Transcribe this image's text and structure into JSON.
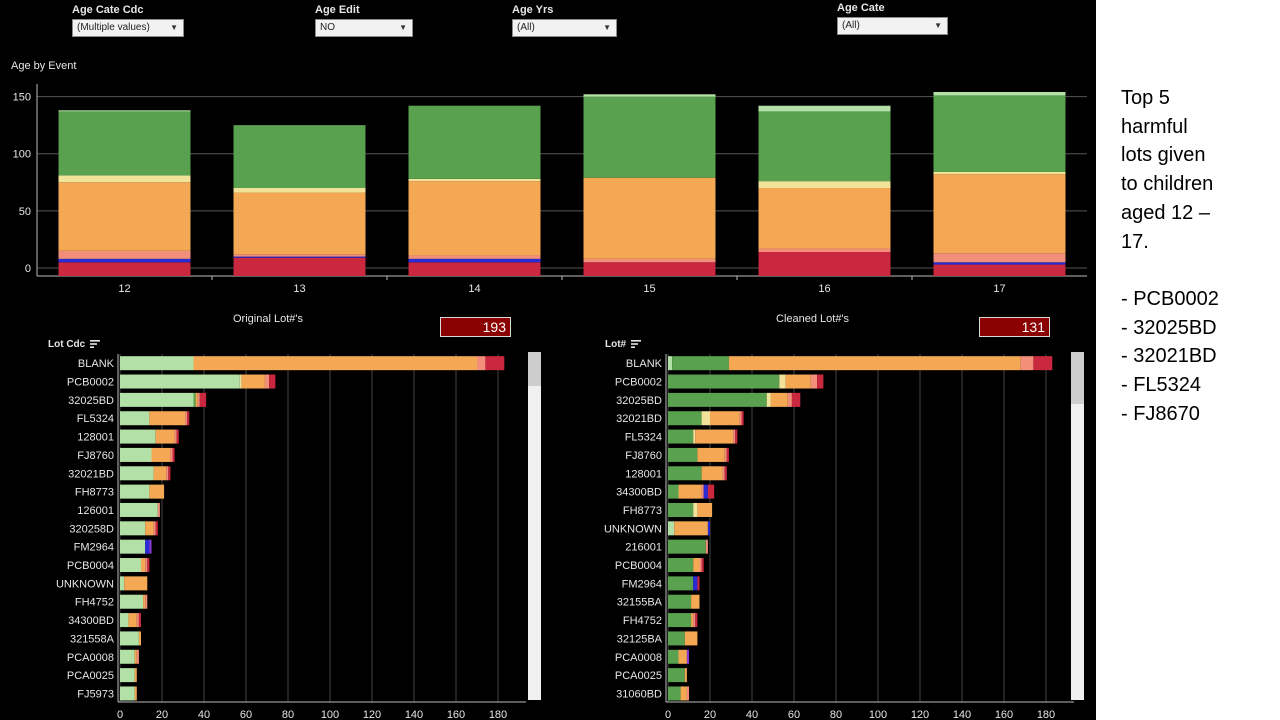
{
  "filters": [
    {
      "label": "Age Cate Cdc",
      "value": "(Multiple values)"
    },
    {
      "label": "Age Edit",
      "value": "NO"
    },
    {
      "label": "Age Yrs",
      "value": "(All)"
    },
    {
      "label": "Age Cate",
      "value": "(All)"
    }
  ],
  "top_chart": {
    "title": "Age by Event",
    "y_ticks": [
      "150",
      "100",
      "50",
      "0"
    ]
  },
  "left_panel": {
    "title": "Original Lot#'s",
    "count": "193",
    "column_header": "Lot Cdc",
    "x_ticks": [
      "0",
      "20",
      "40",
      "60",
      "80",
      "100",
      "120",
      "140",
      "160",
      "180"
    ]
  },
  "right_panel": {
    "title": "Cleaned Lot#'s",
    "count": "131",
    "column_header": "Lot#",
    "x_ticks": [
      "0",
      "20",
      "40",
      "60",
      "80",
      "100",
      "120",
      "140",
      "160",
      "180"
    ]
  },
  "notes": {
    "heading_lines": [
      "Top 5",
      "harmful",
      "lots given",
      "to children",
      "aged 12 –",
      "17."
    ],
    "items": [
      "- PCB0002",
      "- 32025BD",
      "- 32021BD",
      "- FL5324",
      "- FJ8670"
    ]
  },
  "colors": {
    "dark_green": "#59a14f",
    "light_green": "#b3e0a6",
    "pale_yellow": "#f1e49a",
    "orange": "#f5a853",
    "salmon": "#f28e7a",
    "red": "#c9283f",
    "blue": "#2b2bd6",
    "purple": "#8a3bd6",
    "count_box": "#8b0000"
  },
  "chart_data": [
    {
      "type": "bar",
      "title": "Age by Event",
      "stacked": true,
      "categories": [
        "12",
        "13",
        "14",
        "15",
        "16",
        "17"
      ],
      "ylim": [
        0,
        160
      ],
      "grid": true,
      "segments": [
        [
          {
            "value": 5,
            "color": "red"
          },
          {
            "value": 3,
            "color": "blue"
          },
          {
            "value": 7,
            "color": "salmon"
          },
          {
            "value": 60,
            "color": "orange"
          },
          {
            "value": 6,
            "color": "pale_yellow"
          },
          {
            "value": 56,
            "color": "dark_green"
          },
          {
            "value": 1,
            "color": "light_green"
          }
        ],
        [
          {
            "value": 9,
            "color": "red"
          },
          {
            "value": 1,
            "color": "blue"
          },
          {
            "value": 2,
            "color": "salmon"
          },
          {
            "value": 54,
            "color": "orange"
          },
          {
            "value": 4,
            "color": "pale_yellow"
          },
          {
            "value": 55,
            "color": "dark_green"
          }
        ],
        [
          {
            "value": 5,
            "color": "red"
          },
          {
            "value": 3,
            "color": "blue"
          },
          {
            "value": 3,
            "color": "salmon"
          },
          {
            "value": 65,
            "color": "orange"
          },
          {
            "value": 2,
            "color": "pale_yellow"
          },
          {
            "value": 64,
            "color": "dark_green"
          }
        ],
        [
          {
            "value": 5,
            "color": "red"
          },
          {
            "value": 3,
            "color": "salmon"
          },
          {
            "value": 71,
            "color": "orange"
          },
          {
            "value": 71,
            "color": "dark_green"
          },
          {
            "value": 2,
            "color": "light_green"
          }
        ],
        [
          {
            "value": 14,
            "color": "red"
          },
          {
            "value": 3,
            "color": "salmon"
          },
          {
            "value": 53,
            "color": "orange"
          },
          {
            "value": 6,
            "color": "pale_yellow"
          },
          {
            "value": 61,
            "color": "dark_green"
          },
          {
            "value": 5,
            "color": "light_green"
          }
        ],
        [
          {
            "value": 3,
            "color": "red"
          },
          {
            "value": 2,
            "color": "blue"
          },
          {
            "value": 8,
            "color": "salmon"
          },
          {
            "value": 69,
            "color": "orange"
          },
          {
            "value": 2,
            "color": "pale_yellow"
          },
          {
            "value": 67,
            "color": "dark_green"
          },
          {
            "value": 3,
            "color": "light_green"
          }
        ]
      ]
    },
    {
      "type": "bar",
      "orientation": "horizontal",
      "stacked": true,
      "title": "Original Lot#'s",
      "ylabel": "Lot Cdc",
      "xlim": [
        0,
        190
      ],
      "grid": true,
      "categories": [
        "BLANK",
        "PCB0002",
        "32025BD",
        "FL5324",
        "128001",
        "FJ8760",
        "32021BD",
        "FH8773",
        "126001",
        "320258D",
        "FM2964",
        "PCB0004",
        "UNKNOWN",
        "FH4752",
        "34300BD",
        "321558A",
        "PCA0008",
        "PCA0025",
        "FJ5973"
      ],
      "segments": [
        [
          {
            "value": 35,
            "color": "light_green"
          },
          {
            "value": 135,
            "color": "orange"
          },
          {
            "value": 4,
            "color": "salmon"
          },
          {
            "value": 9,
            "color": "red"
          }
        ],
        [
          {
            "value": 57,
            "color": "light_green"
          },
          {
            "value": 1,
            "color": "pale_yellow"
          },
          {
            "value": 11,
            "color": "orange"
          },
          {
            "value": 2,
            "color": "salmon"
          },
          {
            "value": 3,
            "color": "red"
          }
        ],
        [
          {
            "value": 35,
            "color": "light_green"
          },
          {
            "value": 1,
            "color": "dark_green"
          },
          {
            "value": 1,
            "color": "orange"
          },
          {
            "value": 1,
            "color": "salmon"
          },
          {
            "value": 3,
            "color": "red"
          }
        ],
        [
          {
            "value": 14,
            "color": "light_green"
          },
          {
            "value": 17,
            "color": "orange"
          },
          {
            "value": 1,
            "color": "salmon"
          },
          {
            "value": 1,
            "color": "red"
          }
        ],
        [
          {
            "value": 17,
            "color": "light_green"
          },
          {
            "value": 9,
            "color": "orange"
          },
          {
            "value": 1,
            "color": "salmon"
          },
          {
            "value": 1,
            "color": "red"
          }
        ],
        [
          {
            "value": 15,
            "color": "light_green"
          },
          {
            "value": 9,
            "color": "orange"
          },
          {
            "value": 1,
            "color": "salmon"
          },
          {
            "value": 1,
            "color": "red"
          }
        ],
        [
          {
            "value": 16,
            "color": "light_green"
          },
          {
            "value": 6,
            "color": "orange"
          },
          {
            "value": 1,
            "color": "salmon"
          },
          {
            "value": 1,
            "color": "red"
          }
        ],
        [
          {
            "value": 14,
            "color": "light_green"
          },
          {
            "value": 7,
            "color": "orange"
          }
        ],
        [
          {
            "value": 18,
            "color": "light_green"
          },
          {
            "value": 1,
            "color": "salmon"
          }
        ],
        [
          {
            "value": 12,
            "color": "light_green"
          },
          {
            "value": 4,
            "color": "orange"
          },
          {
            "value": 1,
            "color": "salmon"
          },
          {
            "value": 1,
            "color": "red"
          }
        ],
        [
          {
            "value": 12,
            "color": "light_green"
          },
          {
            "value": 2,
            "color": "blue"
          },
          {
            "value": 1,
            "color": "purple"
          }
        ],
        [
          {
            "value": 10,
            "color": "light_green"
          },
          {
            "value": 2,
            "color": "orange"
          },
          {
            "value": 1,
            "color": "salmon"
          },
          {
            "value": 1,
            "color": "red"
          }
        ],
        [
          {
            "value": 2,
            "color": "light_green"
          },
          {
            "value": 11,
            "color": "orange"
          }
        ],
        [
          {
            "value": 11,
            "color": "light_green"
          },
          {
            "value": 1,
            "color": "orange"
          },
          {
            "value": 1,
            "color": "salmon"
          }
        ],
        [
          {
            "value": 4,
            "color": "light_green"
          },
          {
            "value": 4,
            "color": "orange"
          },
          {
            "value": 1,
            "color": "salmon"
          },
          {
            "value": 1,
            "color": "red"
          }
        ],
        [
          {
            "value": 9,
            "color": "light_green"
          },
          {
            "value": 1,
            "color": "orange"
          }
        ],
        [
          {
            "value": 7,
            "color": "light_green"
          },
          {
            "value": 1,
            "color": "orange"
          },
          {
            "value": 1,
            "color": "salmon"
          }
        ],
        [
          {
            "value": 7,
            "color": "light_green"
          },
          {
            "value": 1,
            "color": "orange"
          }
        ],
        [
          {
            "value": 7,
            "color": "light_green"
          },
          {
            "value": 1,
            "color": "orange"
          }
        ]
      ]
    },
    {
      "type": "bar",
      "orientation": "horizontal",
      "stacked": true,
      "title": "Cleaned Lot#'s",
      "ylabel": "Lot#",
      "xlim": [
        0,
        190
      ],
      "grid": true,
      "categories": [
        "BLANK",
        "PCB0002",
        "32025BD",
        "32021BD",
        "FL5324",
        "FJ8760",
        "128001",
        "34300BD",
        "FH8773",
        "UNKNOWN",
        "216001",
        "PCB0004",
        "FM2964",
        "32155BA",
        "FH4752",
        "32125BA",
        "PCA0008",
        "PCA0025",
        "31060BD"
      ],
      "segments": [
        [
          {
            "value": 2,
            "color": "light_green"
          },
          {
            "value": 27,
            "color": "dark_green"
          },
          {
            "value": 139,
            "color": "orange"
          },
          {
            "value": 6,
            "color": "salmon"
          },
          {
            "value": 9,
            "color": "red"
          }
        ],
        [
          {
            "value": 53,
            "color": "dark_green"
          },
          {
            "value": 3,
            "color": "pale_yellow"
          },
          {
            "value": 12,
            "color": "orange"
          },
          {
            "value": 3,
            "color": "salmon"
          },
          {
            "value": 3,
            "color": "red"
          }
        ],
        [
          {
            "value": 47,
            "color": "dark_green"
          },
          {
            "value": 2,
            "color": "pale_yellow"
          },
          {
            "value": 8,
            "color": "orange"
          },
          {
            "value": 2,
            "color": "salmon"
          },
          {
            "value": 4,
            "color": "red"
          }
        ],
        [
          {
            "value": 16,
            "color": "dark_green"
          },
          {
            "value": 4,
            "color": "pale_yellow"
          },
          {
            "value": 14,
            "color": "orange"
          },
          {
            "value": 1,
            "color": "salmon"
          },
          {
            "value": 1,
            "color": "red"
          }
        ],
        [
          {
            "value": 12,
            "color": "dark_green"
          },
          {
            "value": 1,
            "color": "pale_yellow"
          },
          {
            "value": 18,
            "color": "orange"
          },
          {
            "value": 1,
            "color": "salmon"
          },
          {
            "value": 1,
            "color": "red"
          }
        ],
        [
          {
            "value": 14,
            "color": "dark_green"
          },
          {
            "value": 13,
            "color": "orange"
          },
          {
            "value": 1,
            "color": "salmon"
          },
          {
            "value": 1,
            "color": "red"
          }
        ],
        [
          {
            "value": 16,
            "color": "dark_green"
          },
          {
            "value": 10,
            "color": "orange"
          },
          {
            "value": 1,
            "color": "salmon"
          },
          {
            "value": 1,
            "color": "red"
          }
        ],
        [
          {
            "value": 5,
            "color": "dark_green"
          },
          {
            "value": 11,
            "color": "orange"
          },
          {
            "value": 1,
            "color": "salmon"
          },
          {
            "value": 2,
            "color": "blue"
          },
          {
            "value": 3,
            "color": "red"
          }
        ],
        [
          {
            "value": 12,
            "color": "dark_green"
          },
          {
            "value": 2,
            "color": "pale_yellow"
          },
          {
            "value": 7,
            "color": "orange"
          }
        ],
        [
          {
            "value": 3,
            "color": "light_green"
          },
          {
            "value": 16,
            "color": "orange"
          },
          {
            "value": 1,
            "color": "blue"
          }
        ],
        [
          {
            "value": 18,
            "color": "dark_green"
          },
          {
            "value": 1,
            "color": "salmon"
          }
        ],
        [
          {
            "value": 12,
            "color": "dark_green"
          },
          {
            "value": 3,
            "color": "orange"
          },
          {
            "value": 1,
            "color": "salmon"
          },
          {
            "value": 1,
            "color": "red"
          }
        ],
        [
          {
            "value": 12,
            "color": "dark_green"
          },
          {
            "value": 2,
            "color": "blue"
          },
          {
            "value": 1,
            "color": "red"
          }
        ],
        [
          {
            "value": 11,
            "color": "dark_green"
          },
          {
            "value": 4,
            "color": "orange"
          }
        ],
        [
          {
            "value": 11,
            "color": "dark_green"
          },
          {
            "value": 1,
            "color": "orange"
          },
          {
            "value": 1,
            "color": "salmon"
          },
          {
            "value": 1,
            "color": "red"
          }
        ],
        [
          {
            "value": 8,
            "color": "dark_green"
          },
          {
            "value": 6,
            "color": "orange"
          }
        ],
        [
          {
            "value": 5,
            "color": "dark_green"
          },
          {
            "value": 4,
            "color": "orange"
          },
          {
            "value": 1,
            "color": "purple"
          }
        ],
        [
          {
            "value": 8,
            "color": "dark_green"
          },
          {
            "value": 1,
            "color": "orange"
          }
        ],
        [
          {
            "value": 6,
            "color": "dark_green"
          },
          {
            "value": 3,
            "color": "orange"
          },
          {
            "value": 1,
            "color": "salmon"
          }
        ]
      ]
    }
  ]
}
